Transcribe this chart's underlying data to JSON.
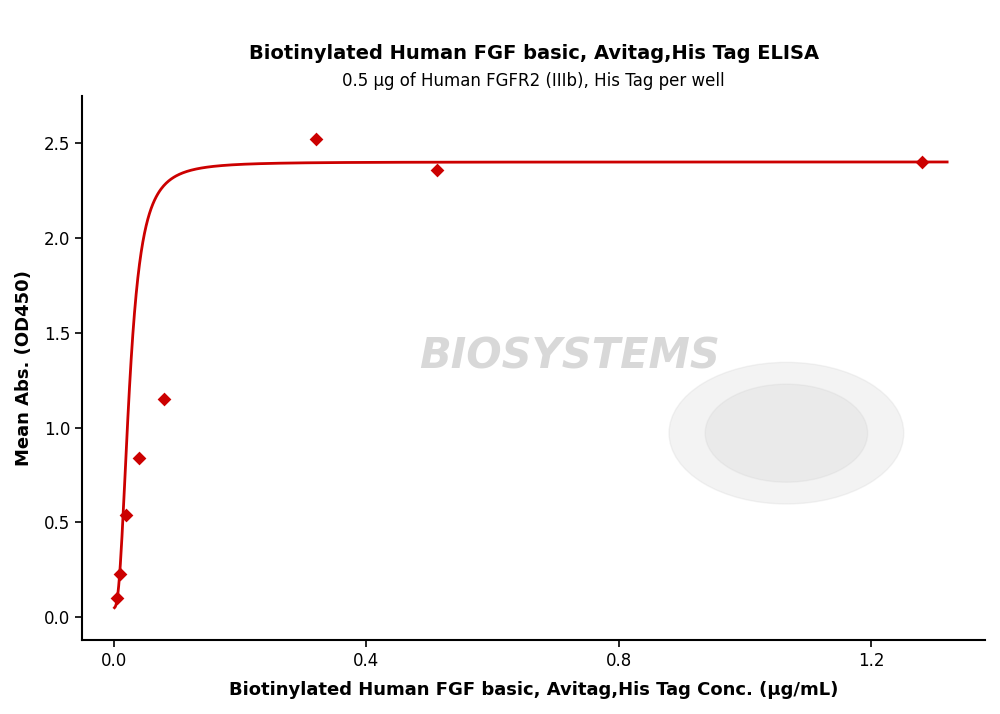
{
  "title_line1": "Biotinylated Human FGF basic, Avitag,His Tag ELISA",
  "title_line2": "0.5 μg of Human FGFR2 (IIIb), His Tag per well",
  "xlabel": "Biotinylated Human FGF basic, Avitag,His Tag Conc. (μg/mL)",
  "ylabel": "Mean Abs. (OD450)",
  "data_x": [
    0.005,
    0.01,
    0.02,
    0.04,
    0.08,
    0.32,
    0.512,
    1.28
  ],
  "data_y": [
    0.1,
    0.23,
    0.54,
    0.84,
    1.15,
    2.52,
    2.36,
    2.4
  ],
  "curve_color": "#CC0000",
  "marker_color": "#CC0000",
  "marker_style": "D",
  "marker_size": 7,
  "xlim": [
    -0.05,
    1.38
  ],
  "ylim": [
    -0.12,
    2.75
  ],
  "xticks": [
    0.0,
    0.4,
    0.8,
    1.2
  ],
  "yticks": [
    0.0,
    0.5,
    1.0,
    1.5,
    2.0,
    2.5
  ],
  "title_fontsize": 14,
  "subtitle_fontsize": 12,
  "axis_label_fontsize": 13,
  "tick_fontsize": 12,
  "watermark_text": "BIOSYSTEMS",
  "background_color": "#ffffff",
  "line_width": 2.0,
  "figsize": [
    10.0,
    7.14
  ],
  "dpi": 100
}
